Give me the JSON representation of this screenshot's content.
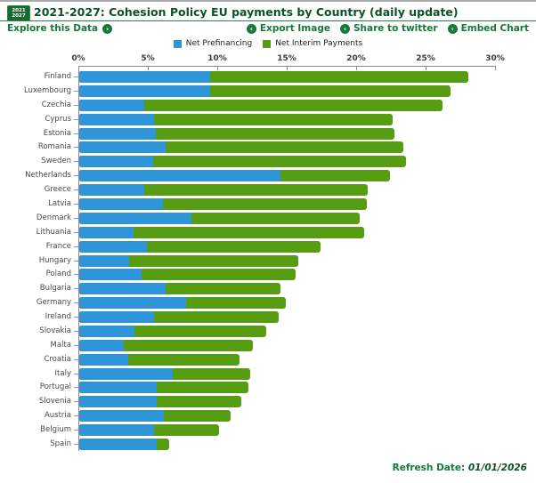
{
  "header": {
    "badge_line1": "2021",
    "badge_line2": "2027",
    "title": "2021-2027: Cohesion Policy EU payments by Country (daily update)"
  },
  "toolbar": {
    "explore_label": "Explore this Data",
    "explore_icon_glyph": "›",
    "link_icon_glyph": "‹",
    "links": [
      {
        "label": "Export Image"
      },
      {
        "label": "Share to twitter"
      },
      {
        "label": "Embed Chart"
      }
    ]
  },
  "footer": {
    "refresh_label": "Refresh Date:",
    "refresh_date": "01/01/2026"
  },
  "colors": {
    "prefinancing_blue": "#2E95D9",
    "interim_green": "#579D12",
    "link_green": "#157A38",
    "title_green": "#0B5229",
    "axis_gray": "#8C8C8C"
  },
  "chart_data": {
    "type": "bar",
    "orientation": "horizontal",
    "stacked": true,
    "grid": false,
    "legend_position": "top-center",
    "unit": "%",
    "xlim": [
      0,
      30
    ],
    "x_ticks": [
      "0%",
      "5%",
      "10%",
      "15%",
      "20%",
      "25%",
      "30%"
    ],
    "categories": [
      "Finland",
      "Luxembourg",
      "Czechia",
      "Cyprus",
      "Estonia",
      "Romania",
      "Sweden",
      "Netherlands",
      "Greece",
      "Latvia",
      "Denmark",
      "Lithuania",
      "France",
      "Hungary",
      "Poland",
      "Bulgaria",
      "Germany",
      "Ireland",
      "Slovakia",
      "Malta",
      "Croatia",
      "Italy",
      "Portugal",
      "Slovenia",
      "Austria",
      "Belgium",
      "Spain"
    ],
    "series": [
      {
        "name": "Net Prefinancing",
        "color": "#2E95D9",
        "values": [
          9.4,
          9.4,
          4.7,
          5.4,
          5.5,
          6.2,
          5.3,
          14.5,
          4.7,
          6.0,
          8.1,
          3.9,
          4.9,
          3.6,
          4.5,
          6.2,
          7.7,
          5.4,
          4.0,
          3.2,
          3.5,
          6.7,
          5.6,
          5.6,
          6.1,
          5.4,
          5.6
        ]
      },
      {
        "name": "Net Interim Payments",
        "color": "#579D12",
        "values": [
          18.6,
          17.3,
          21.5,
          17.2,
          17.2,
          17.1,
          18.2,
          7.9,
          16.1,
          14.7,
          12.1,
          16.6,
          12.5,
          12.2,
          11.1,
          8.3,
          7.2,
          9.0,
          9.5,
          9.3,
          8.0,
          5.6,
          6.6,
          6.1,
          4.8,
          4.7,
          0.9
        ]
      }
    ]
  }
}
